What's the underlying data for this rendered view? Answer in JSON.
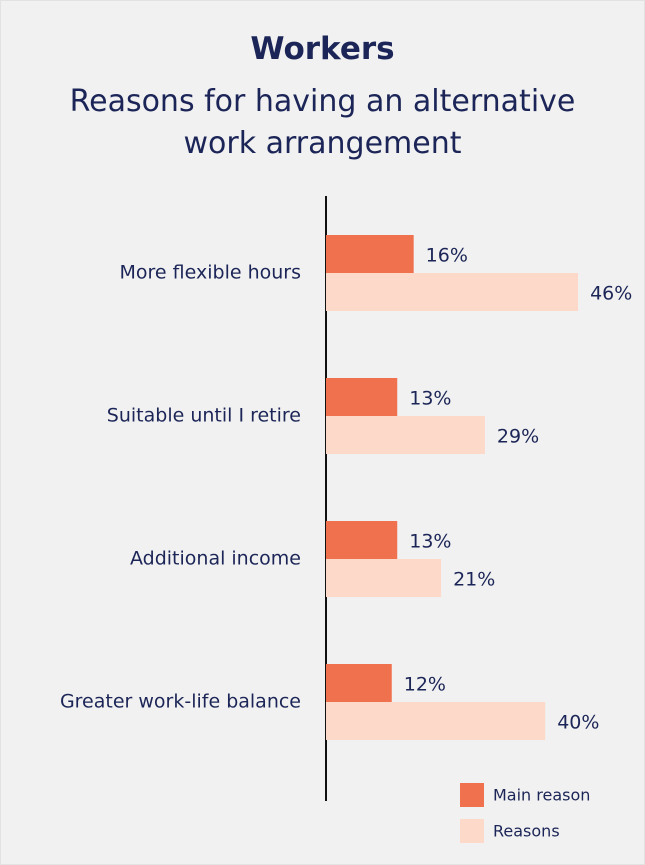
{
  "chart_data": {
    "type": "hbar",
    "title": "Workers",
    "subtitle": "Reasons for having an alternative work arrangement",
    "categories": [
      "More flexible hours",
      "Suitable until I retire",
      "Additional income",
      "Greater work-life balance"
    ],
    "series": [
      {
        "name": "Main reason",
        "color": "#f0714e",
        "values": [
          16,
          13,
          13,
          12
        ],
        "value_labels": [
          "16%",
          "13%",
          "13%",
          "12%"
        ]
      },
      {
        "name": "Reasons",
        "color": "#fcd9c8",
        "values": [
          46,
          29,
          21,
          40
        ],
        "value_labels": [
          "46%",
          "29%",
          "21%",
          "40%"
        ]
      }
    ]
  }
}
